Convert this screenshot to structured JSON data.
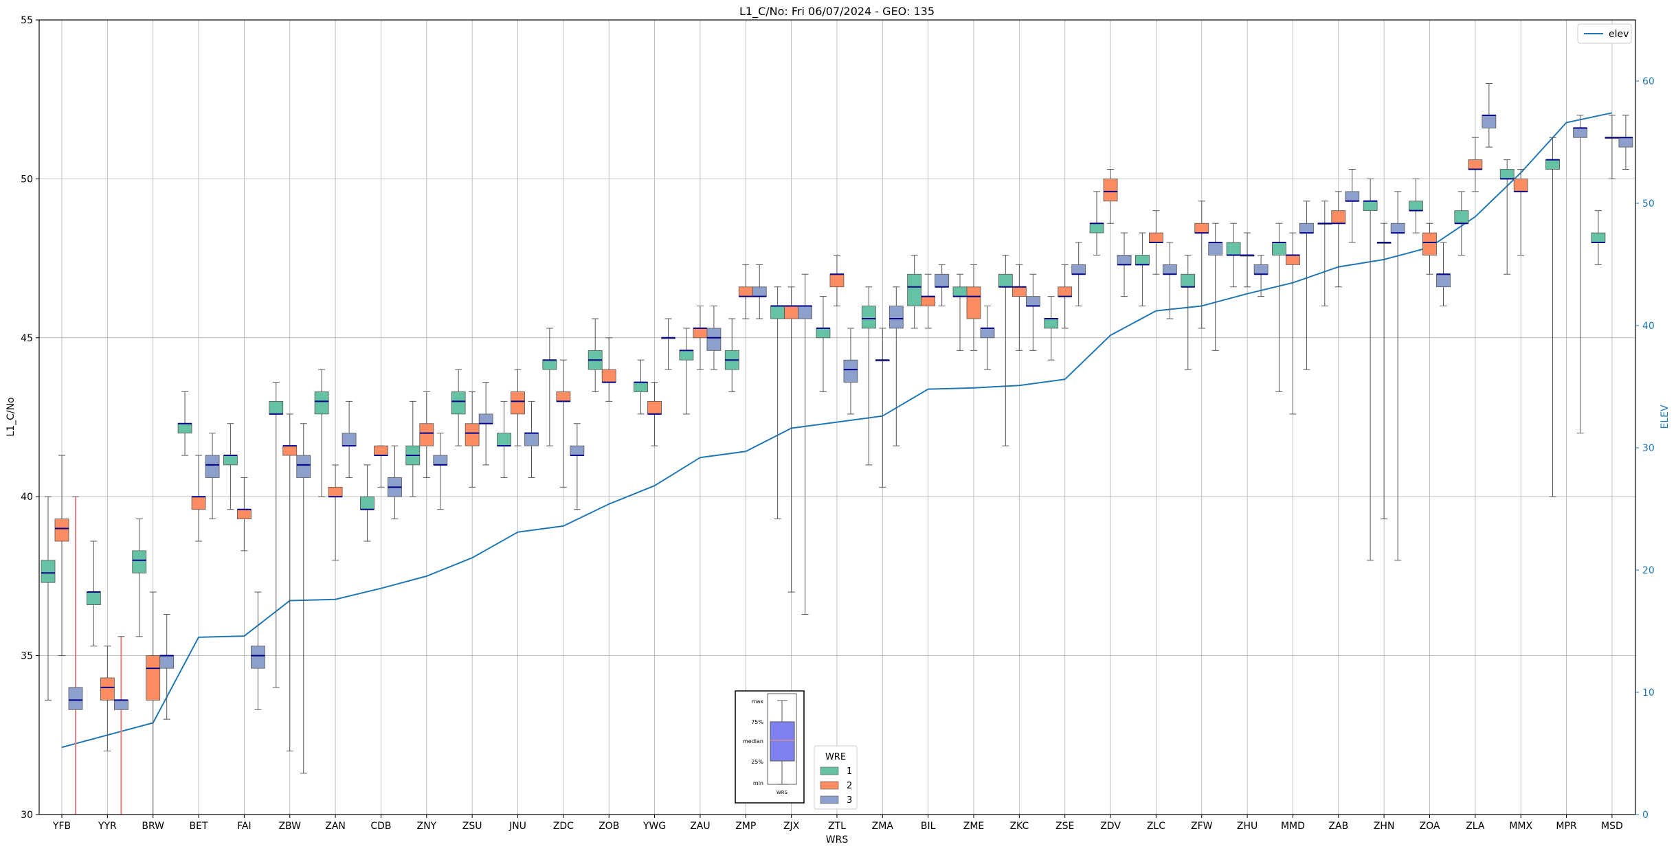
{
  "chart_data": {
    "type": "box",
    "title": "L1_C/No: Fri 06/07/2024 - GEO: 135",
    "xlabel": "WRS",
    "ylabel": "L1_C/No",
    "y2label": "ELEV",
    "ylim": [
      30,
      55
    ],
    "y2lim": [
      0,
      65
    ],
    "yticks": [
      30,
      35,
      40,
      45,
      50,
      55
    ],
    "y2ticks": [
      0,
      10,
      20,
      30,
      40,
      50,
      60
    ],
    "grid": true,
    "categories": [
      "YFB",
      "YYR",
      "BRW",
      "BET",
      "FAI",
      "ZBW",
      "ZAN",
      "CDB",
      "ZNY",
      "ZSU",
      "JNU",
      "ZDC",
      "ZOB",
      "YWG",
      "ZAU",
      "ZMP",
      "ZJX",
      "ZTL",
      "ZMA",
      "BIL",
      "ZME",
      "ZKC",
      "ZSE",
      "ZDV",
      "ZLC",
      "ZFW",
      "ZHU",
      "MMD",
      "ZAB",
      "ZHN",
      "ZOA",
      "ZLA",
      "MMX",
      "MPR",
      "MSD"
    ],
    "legend": {
      "title": "WRE",
      "position": "bottom-center",
      "entries": [
        "1",
        "2",
        "3"
      ]
    },
    "colors": {
      "wre1": "#66c2a5",
      "wre2": "#fc8d62",
      "wre3": "#8da0cb",
      "median": "#00008b",
      "elev": "#1f77b4",
      "outlier": "#f08080"
    },
    "elev": {
      "name": "elev",
      "legend_position": "top-right",
      "values": [
        5.5,
        6.5,
        7.5,
        14.5,
        14.6,
        17.5,
        17.6,
        18.5,
        19.5,
        21.0,
        23.1,
        23.6,
        25.4,
        26.9,
        29.2,
        29.7,
        31.6,
        32.1,
        32.6,
        34.8,
        34.9,
        35.1,
        35.6,
        39.2,
        41.2,
        41.6,
        42.6,
        43.5,
        44.8,
        45.4,
        46.4,
        48.9,
        52.5,
        56.6,
        57.4
      ]
    },
    "inset": {
      "labels": [
        "max",
        "75%",
        "median",
        "25%",
        "min"
      ],
      "xlabel": "WRS"
    },
    "boxes": [
      {
        "station": "YFB",
        "wre": 1,
        "min": 33.6,
        "q1": 37.3,
        "median": 37.6,
        "q3": 38.0,
        "max": 40.0
      },
      {
        "station": "YFB",
        "wre": 2,
        "min": 35.0,
        "q1": 38.6,
        "median": 39.0,
        "q3": 39.3,
        "max": 41.3
      },
      {
        "station": "YFB",
        "wre": 3,
        "min": 30.0,
        "q1": 33.3,
        "median": 33.6,
        "q3": 34.0,
        "max": 40.0,
        "outlier": true
      },
      {
        "station": "YYR",
        "wre": 1,
        "min": 35.3,
        "q1": 36.6,
        "median": 37.0,
        "q3": 37.0,
        "max": 38.6
      },
      {
        "station": "YYR",
        "wre": 2,
        "min": 32.0,
        "q1": 33.6,
        "median": 34.0,
        "q3": 34.3,
        "max": 35.3
      },
      {
        "station": "YYR",
        "wre": 3,
        "min": 30.0,
        "q1": 33.3,
        "median": 33.6,
        "q3": 33.6,
        "max": 35.6,
        "outlier": true
      },
      {
        "station": "BRW",
        "wre": 1,
        "min": 35.6,
        "q1": 37.6,
        "median": 38.0,
        "q3": 38.3,
        "max": 39.3
      },
      {
        "station": "BRW",
        "wre": 2,
        "min": 30.0,
        "q1": 33.6,
        "median": 34.6,
        "q3": 35.0,
        "max": 37.0
      },
      {
        "station": "BRW",
        "wre": 3,
        "min": 33.0,
        "q1": 34.6,
        "median": 35.0,
        "q3": 35.0,
        "max": 36.3
      },
      {
        "station": "BET",
        "wre": 1,
        "min": 41.3,
        "q1": 42.0,
        "median": 42.3,
        "q3": 42.3,
        "max": 43.3
      },
      {
        "station": "BET",
        "wre": 2,
        "min": 38.6,
        "q1": 39.6,
        "median": 40.0,
        "q3": 40.0,
        "max": 41.3
      },
      {
        "station": "BET",
        "wre": 3,
        "min": 39.3,
        "q1": 40.6,
        "median": 41.0,
        "q3": 41.3,
        "max": 42.0
      },
      {
        "station": "FAI",
        "wre": 1,
        "min": 39.6,
        "q1": 41.0,
        "median": 41.3,
        "q3": 41.3,
        "max": 42.3
      },
      {
        "station": "FAI",
        "wre": 2,
        "min": 38.3,
        "q1": 39.3,
        "median": 39.6,
        "q3": 39.6,
        "max": 40.6
      },
      {
        "station": "FAI",
        "wre": 3,
        "min": 33.3,
        "q1": 34.6,
        "median": 35.0,
        "q3": 35.3,
        "max": 37.0
      },
      {
        "station": "ZBW",
        "wre": 1,
        "min": 34.0,
        "q1": 42.6,
        "median": 42.6,
        "q3": 43.0,
        "max": 43.6
      },
      {
        "station": "ZBW",
        "wre": 2,
        "min": 32.0,
        "q1": 41.3,
        "median": 41.6,
        "q3": 41.6,
        "max": 42.6
      },
      {
        "station": "ZBW",
        "wre": 3,
        "min": 31.3,
        "q1": 40.6,
        "median": 41.0,
        "q3": 41.3,
        "max": 42.3
      },
      {
        "station": "ZAN",
        "wre": 1,
        "min": 40.0,
        "q1": 42.6,
        "median": 43.0,
        "q3": 43.3,
        "max": 44.0
      },
      {
        "station": "ZAN",
        "wre": 2,
        "min": 38.0,
        "q1": 40.0,
        "median": 40.0,
        "q3": 40.3,
        "max": 41.0
      },
      {
        "station": "ZAN",
        "wre": 3,
        "min": 40.6,
        "q1": 41.6,
        "median": 41.6,
        "q3": 42.0,
        "max": 43.0
      },
      {
        "station": "CDB",
        "wre": 1,
        "min": 38.6,
        "q1": 39.6,
        "median": 39.6,
        "q3": 40.0,
        "max": 41.0
      },
      {
        "station": "CDB",
        "wre": 2,
        "min": 40.3,
        "q1": 41.3,
        "median": 41.3,
        "q3": 41.6,
        "max": 41.6
      },
      {
        "station": "CDB",
        "wre": 3,
        "min": 39.3,
        "q1": 40.0,
        "median": 40.3,
        "q3": 40.6,
        "max": 41.6
      },
      {
        "station": "ZNY",
        "wre": 1,
        "min": 40.0,
        "q1": 41.0,
        "median": 41.3,
        "q3": 41.6,
        "max": 43.0
      },
      {
        "station": "ZNY",
        "wre": 2,
        "min": 40.6,
        "q1": 41.6,
        "median": 42.0,
        "q3": 42.3,
        "max": 43.3
      },
      {
        "station": "ZNY",
        "wre": 3,
        "min": 39.6,
        "q1": 41.0,
        "median": 41.0,
        "q3": 41.3,
        "max": 42.0
      },
      {
        "station": "ZSU",
        "wre": 1,
        "min": 41.6,
        "q1": 42.6,
        "median": 43.0,
        "q3": 43.3,
        "max": 44.0
      },
      {
        "station": "ZSU",
        "wre": 2,
        "min": 40.3,
        "q1": 41.6,
        "median": 42.0,
        "q3": 42.3,
        "max": 43.3
      },
      {
        "station": "ZSU",
        "wre": 3,
        "min": 41.0,
        "q1": 42.3,
        "median": 42.3,
        "q3": 42.6,
        "max": 43.6
      },
      {
        "station": "JNU",
        "wre": 1,
        "min": 40.6,
        "q1": 41.6,
        "median": 41.6,
        "q3": 42.0,
        "max": 43.0
      },
      {
        "station": "JNU",
        "wre": 2,
        "min": 41.6,
        "q1": 42.6,
        "median": 43.0,
        "q3": 43.3,
        "max": 44.0
      },
      {
        "station": "JNU",
        "wre": 3,
        "min": 40.6,
        "q1": 41.6,
        "median": 42.0,
        "q3": 42.0,
        "max": 43.0
      },
      {
        "station": "ZDC",
        "wre": 1,
        "min": 41.6,
        "q1": 44.0,
        "median": 44.3,
        "q3": 44.3,
        "max": 45.3
      },
      {
        "station": "ZDC",
        "wre": 2,
        "min": 40.3,
        "q1": 43.0,
        "median": 43.0,
        "q3": 43.3,
        "max": 44.3
      },
      {
        "station": "ZDC",
        "wre": 3,
        "min": 39.6,
        "q1": 41.3,
        "median": 41.3,
        "q3": 41.6,
        "max": 42.3
      },
      {
        "station": "ZOB",
        "wre": 1,
        "min": 43.3,
        "q1": 44.0,
        "median": 44.3,
        "q3": 44.6,
        "max": 45.6
      },
      {
        "station": "ZOB",
        "wre": 2,
        "min": 43.0,
        "q1": 43.6,
        "median": 43.6,
        "q3": 44.0,
        "max": 45.0
      },
      {
        "station": "YWG",
        "wre": 1,
        "min": 42.6,
        "q1": 43.3,
        "median": 43.6,
        "q3": 43.6,
        "max": 44.3
      },
      {
        "station": "YWG",
        "wre": 2,
        "min": 41.6,
        "q1": 42.6,
        "median": 42.6,
        "q3": 43.0,
        "max": 43.6
      },
      {
        "station": "YWG",
        "wre": 3,
        "min": 44.0,
        "q1": 45.0,
        "median": 45.0,
        "q3": 45.0,
        "max": 45.6
      },
      {
        "station": "ZAU",
        "wre": 1,
        "min": 42.6,
        "q1": 44.3,
        "median": 44.6,
        "q3": 44.6,
        "max": 45.3
      },
      {
        "station": "ZAU",
        "wre": 2,
        "min": 44.0,
        "q1": 45.0,
        "median": 45.3,
        "q3": 45.3,
        "max": 46.0
      },
      {
        "station": "ZAU",
        "wre": 3,
        "min": 44.0,
        "q1": 44.6,
        "median": 45.0,
        "q3": 45.3,
        "max": 46.0
      },
      {
        "station": "ZMP",
        "wre": 1,
        "min": 43.3,
        "q1": 44.0,
        "median": 44.3,
        "q3": 44.6,
        "max": 45.6
      },
      {
        "station": "ZMP",
        "wre": 2,
        "min": 45.6,
        "q1": 46.3,
        "median": 46.3,
        "q3": 46.6,
        "max": 47.3
      },
      {
        "station": "ZMP",
        "wre": 3,
        "min": 45.6,
        "q1": 46.3,
        "median": 46.3,
        "q3": 46.6,
        "max": 47.3
      },
      {
        "station": "ZJX",
        "wre": 1,
        "min": 39.3,
        "q1": 45.6,
        "median": 46.0,
        "q3": 46.0,
        "max": 46.6
      },
      {
        "station": "ZJX",
        "wre": 2,
        "min": 37.0,
        "q1": 45.6,
        "median": 46.0,
        "q3": 46.0,
        "max": 46.6
      },
      {
        "station": "ZJX",
        "wre": 3,
        "min": 36.3,
        "q1": 45.6,
        "median": 46.0,
        "q3": 46.0,
        "max": 47.0
      },
      {
        "station": "ZTL",
        "wre": 1,
        "min": 43.3,
        "q1": 45.0,
        "median": 45.3,
        "q3": 45.3,
        "max": 46.3
      },
      {
        "station": "ZTL",
        "wre": 2,
        "min": 46.0,
        "q1": 46.6,
        "median": 47.0,
        "q3": 47.0,
        "max": 47.6
      },
      {
        "station": "ZTL",
        "wre": 3,
        "min": 42.6,
        "q1": 43.6,
        "median": 44.0,
        "q3": 44.3,
        "max": 45.3
      },
      {
        "station": "ZMA",
        "wre": 1,
        "min": 41.0,
        "q1": 45.3,
        "median": 45.6,
        "q3": 46.0,
        "max": 46.6
      },
      {
        "station": "ZMA",
        "wre": 2,
        "min": 40.3,
        "q1": 44.3,
        "median": 44.3,
        "q3": 44.3,
        "max": 45.3
      },
      {
        "station": "ZMA",
        "wre": 3,
        "min": 41.6,
        "q1": 45.3,
        "median": 45.6,
        "q3": 46.0,
        "max": 46.6
      },
      {
        "station": "BIL",
        "wre": 1,
        "min": 45.3,
        "q1": 46.0,
        "median": 46.6,
        "q3": 47.0,
        "max": 47.6
      },
      {
        "station": "BIL",
        "wre": 2,
        "min": 45.3,
        "q1": 46.0,
        "median": 46.3,
        "q3": 46.3,
        "max": 47.0
      },
      {
        "station": "BIL",
        "wre": 3,
        "min": 46.0,
        "q1": 46.6,
        "median": 46.6,
        "q3": 47.0,
        "max": 47.3
      },
      {
        "station": "ZME",
        "wre": 1,
        "min": 44.6,
        "q1": 46.3,
        "median": 46.3,
        "q3": 46.6,
        "max": 47.0
      },
      {
        "station": "ZME",
        "wre": 2,
        "min": 44.6,
        "q1": 45.6,
        "median": 46.3,
        "q3": 46.6,
        "max": 47.3
      },
      {
        "station": "ZME",
        "wre": 3,
        "min": 44.0,
        "q1": 45.0,
        "median": 45.3,
        "q3": 45.3,
        "max": 46.0
      },
      {
        "station": "ZKC",
        "wre": 1,
        "min": 41.6,
        "q1": 46.6,
        "median": 46.6,
        "q3": 47.0,
        "max": 47.6
      },
      {
        "station": "ZKC",
        "wre": 2,
        "min": 44.6,
        "q1": 46.3,
        "median": 46.6,
        "q3": 46.6,
        "max": 47.3
      },
      {
        "station": "ZKC",
        "wre": 3,
        "min": 44.6,
        "q1": 46.0,
        "median": 46.0,
        "q3": 46.3,
        "max": 47.0
      },
      {
        "station": "ZSE",
        "wre": 1,
        "min": 44.3,
        "q1": 45.3,
        "median": 45.6,
        "q3": 45.6,
        "max": 46.3
      },
      {
        "station": "ZSE",
        "wre": 2,
        "min": 45.3,
        "q1": 46.3,
        "median": 46.3,
        "q3": 46.6,
        "max": 47.3
      },
      {
        "station": "ZSE",
        "wre": 3,
        "min": 46.0,
        "q1": 47.0,
        "median": 47.0,
        "q3": 47.3,
        "max": 48.0
      },
      {
        "station": "ZDV",
        "wre": 1,
        "min": 47.6,
        "q1": 48.3,
        "median": 48.6,
        "q3": 48.6,
        "max": 49.6
      },
      {
        "station": "ZDV",
        "wre": 2,
        "min": 48.6,
        "q1": 49.3,
        "median": 49.6,
        "q3": 50.0,
        "max": 50.3
      },
      {
        "station": "ZDV",
        "wre": 3,
        "min": 46.3,
        "q1": 47.3,
        "median": 47.3,
        "q3": 47.6,
        "max": 48.3
      },
      {
        "station": "ZLC",
        "wre": 1,
        "min": 46.0,
        "q1": 47.3,
        "median": 47.3,
        "q3": 47.6,
        "max": 48.3
      },
      {
        "station": "ZLC",
        "wre": 2,
        "min": 47.0,
        "q1": 48.0,
        "median": 48.0,
        "q3": 48.3,
        "max": 49.0
      },
      {
        "station": "ZLC",
        "wre": 3,
        "min": 45.6,
        "q1": 47.0,
        "median": 47.0,
        "q3": 47.3,
        "max": 48.0
      },
      {
        "station": "ZFW",
        "wre": 1,
        "min": 44.0,
        "q1": 46.6,
        "median": 46.6,
        "q3": 47.0,
        "max": 47.6
      },
      {
        "station": "ZFW",
        "wre": 2,
        "min": 45.3,
        "q1": 48.3,
        "median": 48.3,
        "q3": 48.6,
        "max": 49.3
      },
      {
        "station": "ZFW",
        "wre": 3,
        "min": 44.6,
        "q1": 47.6,
        "median": 48.0,
        "q3": 48.0,
        "max": 48.6
      },
      {
        "station": "ZHU",
        "wre": 1,
        "min": 46.6,
        "q1": 47.6,
        "median": 47.6,
        "q3": 48.0,
        "max": 48.6
      },
      {
        "station": "ZHU",
        "wre": 2,
        "min": 46.6,
        "q1": 47.6,
        "median": 47.6,
        "q3": 47.6,
        "max": 48.3
      },
      {
        "station": "ZHU",
        "wre": 3,
        "min": 46.3,
        "q1": 47.0,
        "median": 47.0,
        "q3": 47.3,
        "max": 47.6
      },
      {
        "station": "MMD",
        "wre": 1,
        "min": 43.3,
        "q1": 47.6,
        "median": 48.0,
        "q3": 48.0,
        "max": 48.6
      },
      {
        "station": "MMD",
        "wre": 2,
        "min": 42.6,
        "q1": 47.3,
        "median": 47.6,
        "q3": 47.6,
        "max": 48.3
      },
      {
        "station": "MMD",
        "wre": 3,
        "min": 44.0,
        "q1": 48.3,
        "median": 48.3,
        "q3": 48.6,
        "max": 49.3
      },
      {
        "station": "ZAB",
        "wre": 1,
        "min": 46.0,
        "q1": 48.6,
        "median": 48.6,
        "q3": 48.6,
        "max": 49.3
      },
      {
        "station": "ZAB",
        "wre": 2,
        "min": 46.6,
        "q1": 48.6,
        "median": 48.6,
        "q3": 49.0,
        "max": 49.6
      },
      {
        "station": "ZAB",
        "wre": 3,
        "min": 48.0,
        "q1": 49.3,
        "median": 49.3,
        "q3": 49.6,
        "max": 50.3
      },
      {
        "station": "ZHN",
        "wre": 1,
        "min": 38.0,
        "q1": 49.0,
        "median": 49.3,
        "q3": 49.3,
        "max": 50.0
      },
      {
        "station": "ZHN",
        "wre": 2,
        "min": 39.3,
        "q1": 48.0,
        "median": 48.0,
        "q3": 48.0,
        "max": 48.6
      },
      {
        "station": "ZHN",
        "wre": 3,
        "min": 38.0,
        "q1": 48.3,
        "median": 48.3,
        "q3": 48.6,
        "max": 49.6
      },
      {
        "station": "ZOA",
        "wre": 1,
        "min": 48.3,
        "q1": 49.0,
        "median": 49.0,
        "q3": 49.3,
        "max": 50.0
      },
      {
        "station": "ZOA",
        "wre": 2,
        "min": 47.0,
        "q1": 47.6,
        "median": 48.0,
        "q3": 48.3,
        "max": 48.6
      },
      {
        "station": "ZOA",
        "wre": 3,
        "min": 46.0,
        "q1": 46.6,
        "median": 47.0,
        "q3": 47.0,
        "max": 48.0
      },
      {
        "station": "ZLA",
        "wre": 1,
        "min": 47.6,
        "q1": 48.6,
        "median": 48.6,
        "q3": 49.0,
        "max": 49.6
      },
      {
        "station": "ZLA",
        "wre": 2,
        "min": 49.6,
        "q1": 50.3,
        "median": 50.3,
        "q3": 50.6,
        "max": 51.3
      },
      {
        "station": "ZLA",
        "wre": 3,
        "min": 51.0,
        "q1": 51.6,
        "median": 52.0,
        "q3": 52.0,
        "max": 53.0
      },
      {
        "station": "MMX",
        "wre": 1,
        "min": 47.0,
        "q1": 50.0,
        "median": 50.0,
        "q3": 50.3,
        "max": 50.6
      },
      {
        "station": "MMX",
        "wre": 2,
        "min": 47.6,
        "q1": 49.6,
        "median": 49.6,
        "q3": 50.0,
        "max": 50.3
      },
      {
        "station": "MPR",
        "wre": 1,
        "min": 40.0,
        "q1": 50.3,
        "median": 50.6,
        "q3": 50.6,
        "max": 51.3
      },
      {
        "station": "MPR",
        "wre": 3,
        "min": 42.0,
        "q1": 51.3,
        "median": 51.6,
        "q3": 51.6,
        "max": 52.0
      },
      {
        "station": "MSD",
        "wre": 1,
        "min": 47.3,
        "q1": 48.0,
        "median": 48.0,
        "q3": 48.3,
        "max": 49.0
      },
      {
        "station": "MSD",
        "wre": 2,
        "min": 50.0,
        "q1": 51.3,
        "median": 51.3,
        "q3": 51.3,
        "max": 52.0
      },
      {
        "station": "MSD",
        "wre": 3,
        "min": 50.3,
        "q1": 51.0,
        "median": 51.3,
        "q3": 51.3,
        "max": 52.0
      }
    ]
  }
}
